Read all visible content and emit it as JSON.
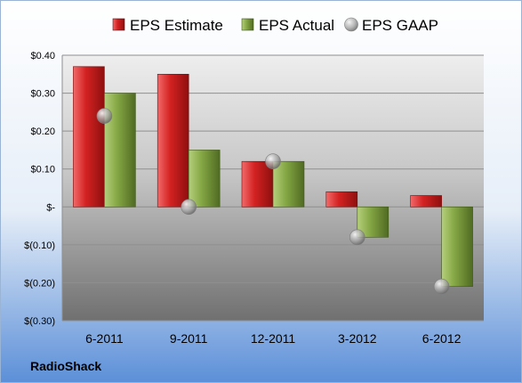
{
  "chart_data": {
    "type": "bar",
    "categories": [
      "6-2011",
      "9-2011",
      "12-2011",
      "3-2012",
      "6-2012"
    ],
    "series": [
      {
        "name": "EPS Estimate",
        "type": "bar",
        "color": "#c41e1e",
        "values": [
          0.37,
          0.35,
          0.12,
          0.04,
          0.03
        ]
      },
      {
        "name": "EPS Actual",
        "type": "bar",
        "color": "#7a9a3c",
        "values": [
          0.3,
          0.15,
          0.12,
          -0.08,
          -0.21
        ]
      },
      {
        "name": "EPS GAAP",
        "type": "scatter",
        "color": "#a0a0a0",
        "values": [
          0.24,
          0.0,
          0.12,
          -0.08,
          -0.21
        ]
      }
    ],
    "yticks": [
      "$0.40",
      "$0.30",
      "$0.20",
      "$0.10",
      "$-",
      "$(0.10)",
      "$(0.20)",
      "$(0.30)"
    ],
    "ylim": [
      -0.3,
      0.4
    ],
    "grid": true,
    "legend": "top",
    "company": "RadioShack"
  }
}
